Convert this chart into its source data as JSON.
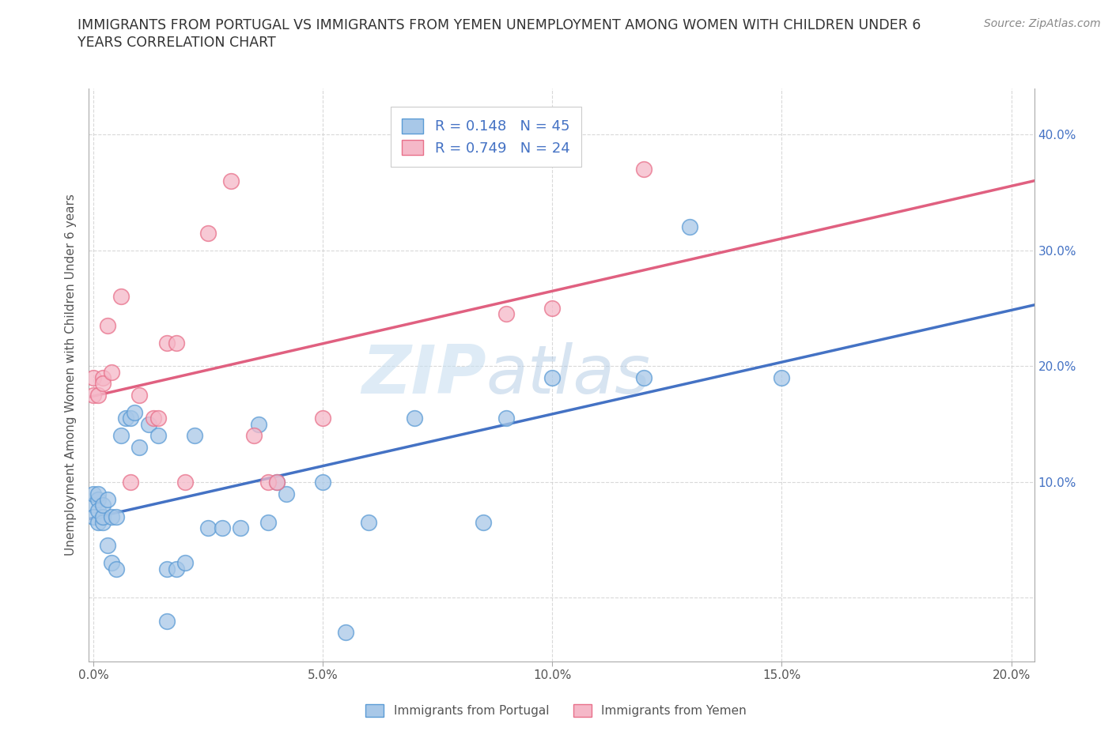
{
  "title_line1": "IMMIGRANTS FROM PORTUGAL VS IMMIGRANTS FROM YEMEN UNEMPLOYMENT AMONG WOMEN WITH CHILDREN UNDER 6",
  "title_line2": "YEARS CORRELATION CHART",
  "source": "Source: ZipAtlas.com",
  "ylabel": "Unemployment Among Women with Children Under 6 years",
  "xlim": [
    -0.001,
    0.205
  ],
  "ylim": [
    -0.055,
    0.44
  ],
  "xticks": [
    0.0,
    0.05,
    0.1,
    0.15,
    0.2
  ],
  "yticks": [
    0.0,
    0.1,
    0.2,
    0.3,
    0.4
  ],
  "xtick_labels": [
    "0.0%",
    "5.0%",
    "10.0%",
    "15.0%",
    "20.0%"
  ],
  "ytick_labels_right": [
    "",
    "10.0%",
    "20.0%",
    "30.0%",
    "40.0%"
  ],
  "portugal_color": "#a8c8e8",
  "yemen_color": "#f5b8c8",
  "portugal_edge_color": "#5b9bd5",
  "yemen_edge_color": "#e8708a",
  "portugal_line_color": "#4472c4",
  "yemen_line_color": "#e06080",
  "R_portugal": 0.148,
  "N_portugal": 45,
  "R_yemen": 0.749,
  "N_yemen": 24,
  "legend_label_portugal": "Immigrants from Portugal",
  "legend_label_yemen": "Immigrants from Yemen",
  "portugal_x": [
    0.0,
    0.0,
    0.0,
    0.001,
    0.001,
    0.001,
    0.001,
    0.002,
    0.002,
    0.002,
    0.003,
    0.003,
    0.004,
    0.004,
    0.005,
    0.005,
    0.006,
    0.007,
    0.008,
    0.009,
    0.01,
    0.012,
    0.014,
    0.016,
    0.016,
    0.018,
    0.02,
    0.022,
    0.025,
    0.028,
    0.032,
    0.036,
    0.038,
    0.04,
    0.042,
    0.05,
    0.055,
    0.06,
    0.07,
    0.085,
    0.09,
    0.1,
    0.12,
    0.13,
    0.15
  ],
  "portugal_y": [
    0.08,
    0.09,
    0.07,
    0.085,
    0.065,
    0.09,
    0.075,
    0.065,
    0.07,
    0.08,
    0.045,
    0.085,
    0.03,
    0.07,
    0.025,
    0.07,
    0.14,
    0.155,
    0.155,
    0.16,
    0.13,
    0.15,
    0.14,
    -0.02,
    0.025,
    0.025,
    0.03,
    0.14,
    0.06,
    0.06,
    0.06,
    0.15,
    0.065,
    0.1,
    0.09,
    0.1,
    -0.03,
    0.065,
    0.155,
    0.065,
    0.155,
    0.19,
    0.19,
    0.32,
    0.19
  ],
  "yemen_x": [
    0.0,
    0.0,
    0.001,
    0.002,
    0.002,
    0.003,
    0.004,
    0.006,
    0.008,
    0.01,
    0.013,
    0.014,
    0.016,
    0.018,
    0.02,
    0.025,
    0.03,
    0.035,
    0.038,
    0.04,
    0.05,
    0.09,
    0.1,
    0.12
  ],
  "yemen_y": [
    0.175,
    0.19,
    0.175,
    0.19,
    0.185,
    0.235,
    0.195,
    0.26,
    0.1,
    0.175,
    0.155,
    0.155,
    0.22,
    0.22,
    0.1,
    0.315,
    0.36,
    0.14,
    0.1,
    0.1,
    0.155,
    0.245,
    0.25,
    0.37
  ],
  "watermark_zip": "ZIP",
  "watermark_atlas": "atlas",
  "background_color": "#ffffff",
  "grid_color": "#d0d0d0",
  "tick_color": "#4472c4",
  "axis_color": "#aaaaaa"
}
